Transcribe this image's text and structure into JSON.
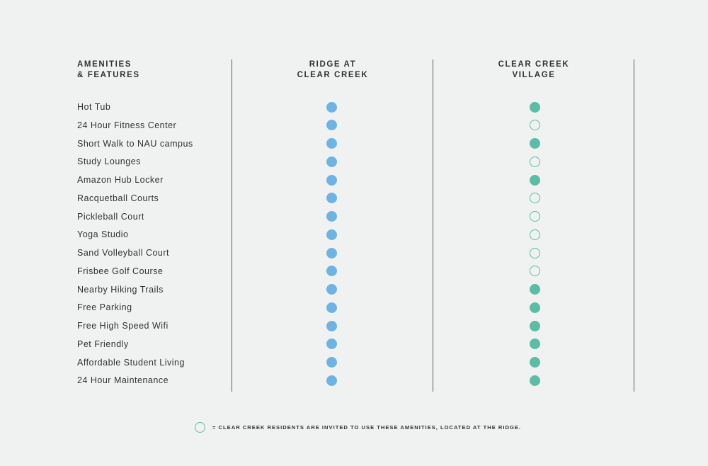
{
  "colors": {
    "ridge_dot": "#6fb3e3",
    "ccv_dot": "#5cbca6",
    "divider": "#5c605f",
    "text": "#2f3433"
  },
  "headers": {
    "amenities": "AMENITIES\n& FEATURES",
    "ridge": "RIDGE AT\nCLEAR CREEK",
    "ccv": "CLEAR CREEK\nVILLAGE"
  },
  "rows": [
    {
      "label": "Hot Tub",
      "ridge": "filled",
      "ccv": "filled"
    },
    {
      "label": "24 Hour Fitness Center",
      "ridge": "filled",
      "ccv": "outline"
    },
    {
      "label": "Short Walk to NAU campus",
      "ridge": "filled",
      "ccv": "filled"
    },
    {
      "label": "Study Lounges",
      "ridge": "filled",
      "ccv": "outline"
    },
    {
      "label": "Amazon Hub Locker",
      "ridge": "filled",
      "ccv": "filled"
    },
    {
      "label": "Racquetball Courts",
      "ridge": "filled",
      "ccv": "outline"
    },
    {
      "label": "Pickleball Court",
      "ridge": "filled",
      "ccv": "outline"
    },
    {
      "label": "Yoga Studio",
      "ridge": "filled",
      "ccv": "outline"
    },
    {
      "label": "Sand Volleyball Court",
      "ridge": "filled",
      "ccv": "outline"
    },
    {
      "label": "Frisbee Golf Course",
      "ridge": "filled",
      "ccv": "outline"
    },
    {
      "label": "Nearby Hiking Trails",
      "ridge": "filled",
      "ccv": "filled"
    },
    {
      "label": "Free Parking",
      "ridge": "filled",
      "ccv": "filled"
    },
    {
      "label": "Free High Speed Wifi",
      "ridge": "filled",
      "ccv": "filled"
    },
    {
      "label": "Pet Friendly",
      "ridge": "filled",
      "ccv": "filled"
    },
    {
      "label": "Affordable Student Living",
      "ridge": "filled",
      "ccv": "filled"
    },
    {
      "label": "24 Hour Maintenance",
      "ridge": "filled",
      "ccv": "filled"
    }
  ],
  "footnote": "= CLEAR CREEK RESIDENTS ARE INVITED TO USE THESE AMENITIES, LOCATED AT THE RIDGE."
}
